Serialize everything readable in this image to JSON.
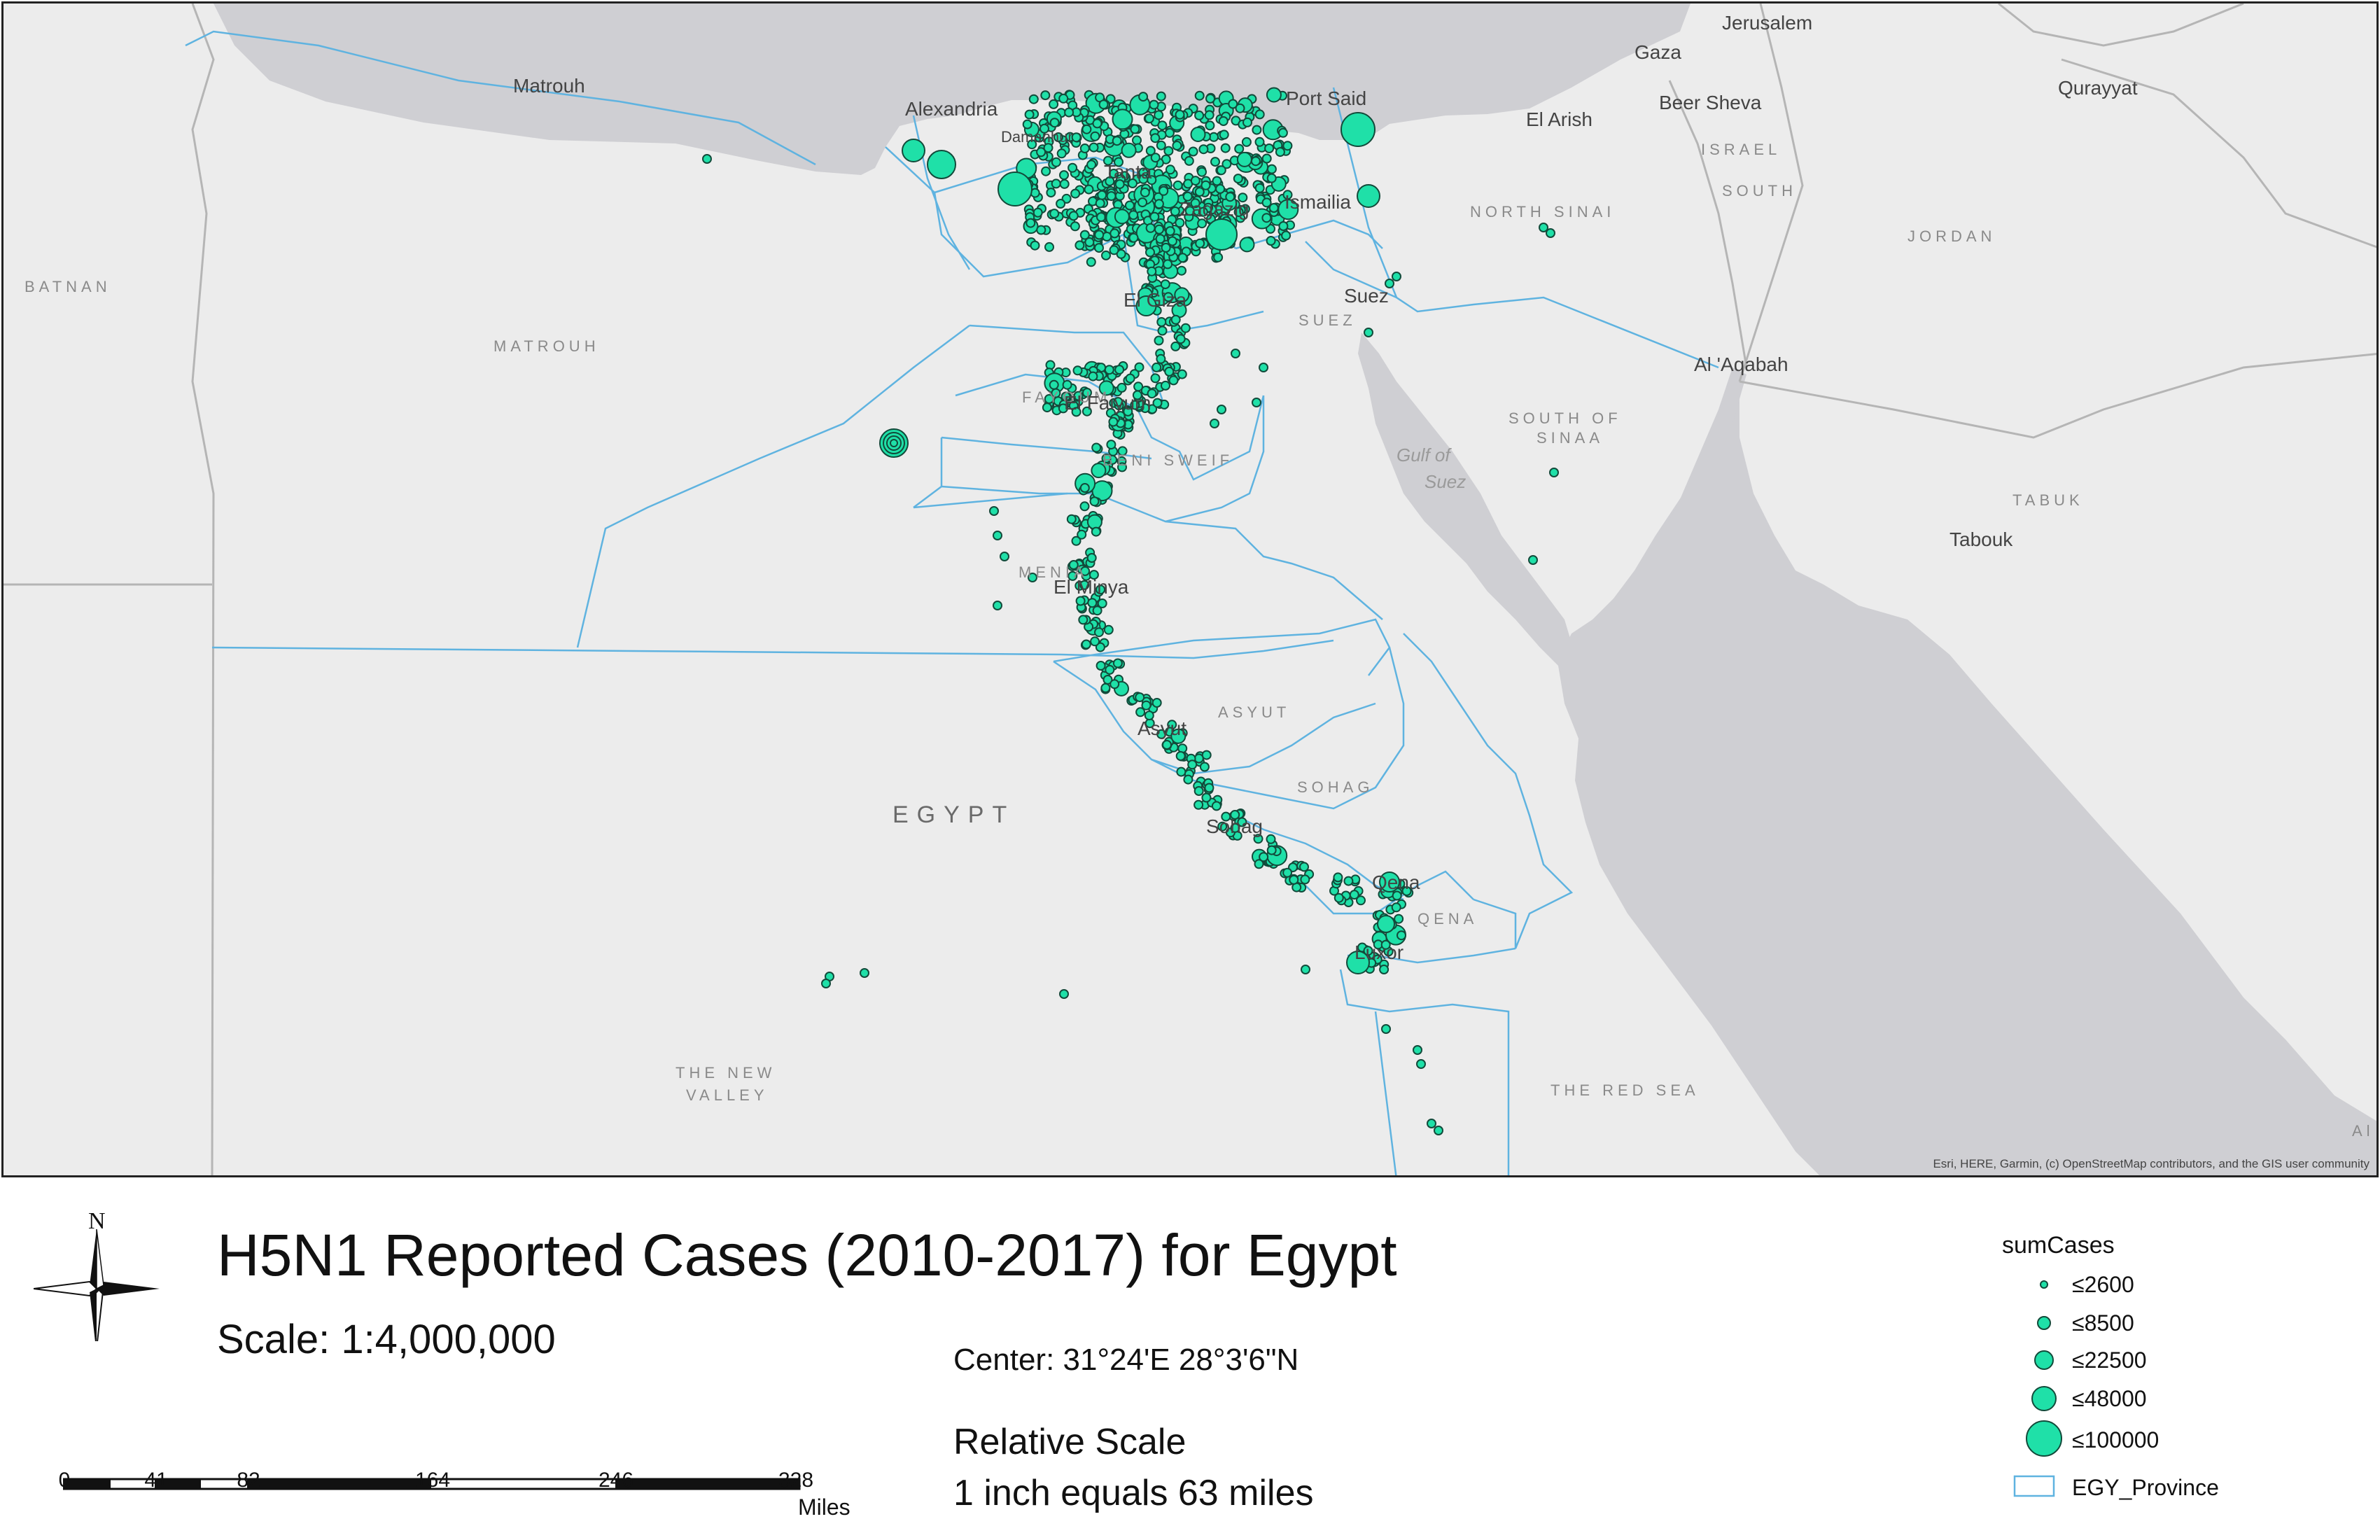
{
  "map": {
    "labels": {
      "jerusalem": "Jerusalem",
      "gaza": "Gaza",
      "beer_sheva": "Beer Sheva",
      "israel": "ISRAEL",
      "south": "SOUTH",
      "qurayyat": "Qurayyat",
      "jordan": "JORDAN",
      "matrouh_city": "Matrouh",
      "alexandria": "Alexandria",
      "damanhur": "Damanhur",
      "port_said": "Port Said",
      "el_arish": "El Arish",
      "north_sinai": "NORTH SINAI",
      "batnan": "BATNAN",
      "matrouh_region": "MATROUH",
      "tanta": "Tanta",
      "zagazig": "Zagazig",
      "ismailia": "Ismailia",
      "el_giza": "El Giza",
      "suez_city": "Suez",
      "suez_region": "SUEZ",
      "al_aqabah": "Al 'Aqabah",
      "fayoum_region": "FAYOUM",
      "el_faiyum": "El Faiyum",
      "beni_sweif": "BENI SWEIF",
      "south_of_sinaa_1": "SOUTH OF",
      "south_of_sinaa_2": "SINAA",
      "gulf_of_1": "Gulf of",
      "gulf_of_2": "Suez",
      "tabuk_region": "TABUK",
      "tabouk": "Tabouk",
      "menia": "MENIA",
      "el_minya": "El Minya",
      "asyut_region": "ASYUT",
      "asyut_city": "Asyut",
      "sohag_region": "SOHAG",
      "sohag_city": "Sohag",
      "egypt": "EGYPT",
      "qena_city": "Qena",
      "qena_region": "QENA",
      "luxor": "Luxor",
      "new_valley_1": "THE NEW",
      "new_valley_2": "VALLEY",
      "red_sea": "THE RED SEA",
      "al_edge": "Al"
    },
    "attribution": "Esri, HERE, Garmin, (c) OpenStreetMap contributors, and the GIS user community",
    "colors": {
      "land": "#ececec",
      "sea": "#cfcfd3",
      "boundary": "#5fb3e0",
      "point_fill": "#1fe0a8",
      "point_stroke": "#124a3a"
    }
  },
  "layout": {
    "title": "H5N1 Reported Cases (2010-2017) for Egypt",
    "scale": "Scale: 1:4,000,000",
    "center": "Center: 31°24'E 28°3'6\"N",
    "relative_scale_title": "Relative Scale",
    "relative_scale_value": "1 inch equals  63 miles",
    "north_label": "N",
    "scalebar": {
      "ticks": [
        "0",
        "41",
        "82",
        "164",
        "246",
        "328"
      ],
      "units": "Miles"
    }
  },
  "legend": {
    "title": "sumCases",
    "items": [
      {
        "label": "≤2600",
        "icon": "circle-small"
      },
      {
        "label": "≤8500",
        "icon": "circle-medium-small"
      },
      {
        "label": "≤22500",
        "icon": "circle-medium"
      },
      {
        "label": "≤48000",
        "icon": "circle-large"
      },
      {
        "label": "≤100000",
        "icon": "circle-xlarge"
      }
    ],
    "province_label": "EGY_Province"
  }
}
